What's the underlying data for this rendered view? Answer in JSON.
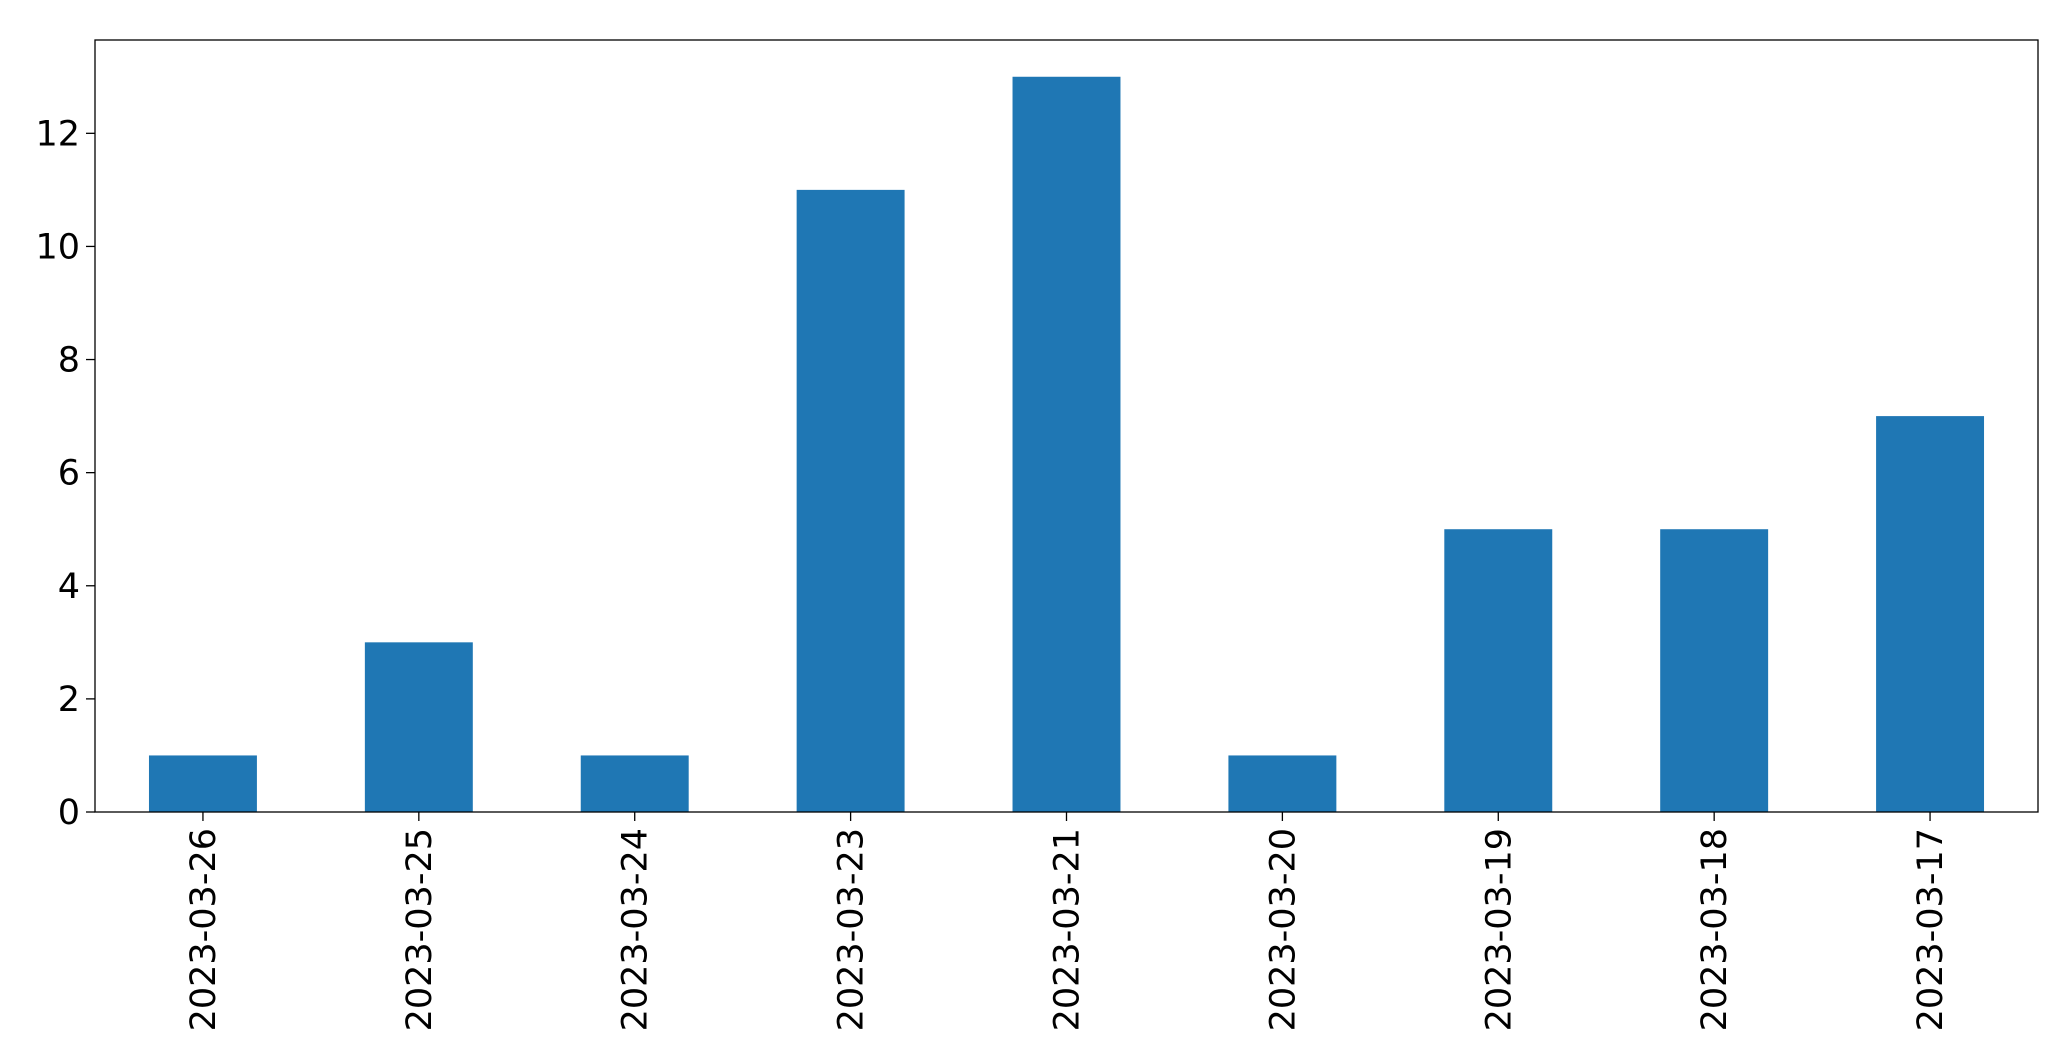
{
  "chart_data": {
    "type": "bar",
    "title": "",
    "xlabel": "",
    "ylabel": "",
    "categories": [
      "2023-03-26",
      "2023-03-25",
      "2023-03-24",
      "2023-03-23",
      "2023-03-21",
      "2023-03-20",
      "2023-03-19",
      "2023-03-18",
      "2023-03-17"
    ],
    "values": [
      1,
      3,
      1,
      11,
      13,
      1,
      5,
      5,
      7
    ],
    "ylim": [
      0,
      13.65
    ],
    "yticks": [
      0,
      2,
      4,
      6,
      8,
      10,
      12
    ],
    "x_tick_rotation": "vertical",
    "bar_color": "#1f77b4",
    "grid": false,
    "legend": "none"
  }
}
